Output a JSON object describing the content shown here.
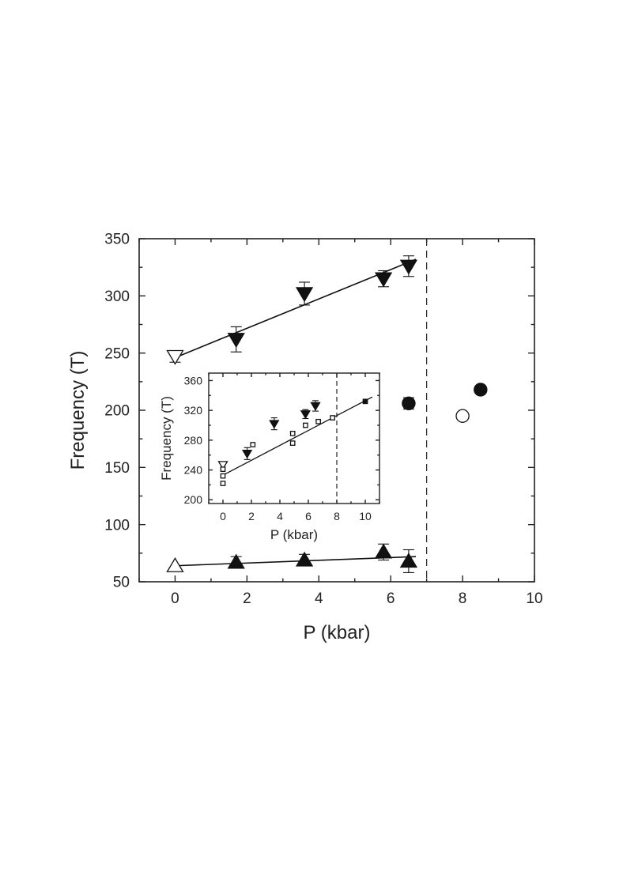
{
  "chart_data": [
    {
      "type": "scatter",
      "title": "",
      "xlabel": "P (kbar)",
      "ylabel": "Frequency (T)",
      "xlim": [
        -1,
        10
      ],
      "ylim": [
        50,
        350
      ],
      "xticks": [
        0,
        2,
        4,
        6,
        8,
        10
      ],
      "yticks": [
        50,
        100,
        150,
        200,
        250,
        300,
        350
      ],
      "grid": false,
      "vline": {
        "x": 7,
        "style": "dashed"
      },
      "series": [
        {
          "marker": "triangle-down-open",
          "points": [
            {
              "x": 0,
              "y": 247,
              "err": 5
            }
          ]
        },
        {
          "marker": "triangle-down-filled",
          "points": [
            {
              "x": 1.7,
              "y": 262,
              "err": 11
            },
            {
              "x": 3.6,
              "y": 302,
              "err": 10
            },
            {
              "x": 5.8,
              "y": 315,
              "err": 7
            },
            {
              "x": 6.5,
              "y": 326,
              "err": 9
            }
          ]
        },
        {
          "marker": "triangle-up-open",
          "points": [
            {
              "x": 0,
              "y": 64
            }
          ]
        },
        {
          "marker": "triangle-up-filled",
          "points": [
            {
              "x": 1.7,
              "y": 67,
              "err": 5
            },
            {
              "x": 3.6,
              "y": 69,
              "err": 5
            },
            {
              "x": 5.8,
              "y": 76,
              "err": 7
            },
            {
              "x": 6.5,
              "y": 68,
              "err": 10
            }
          ]
        },
        {
          "marker": "circle-filled",
          "points": [
            {
              "x": 6.5,
              "y": 206,
              "err": 5
            },
            {
              "x": 8.5,
              "y": 218
            }
          ]
        },
        {
          "marker": "circle-open",
          "points": [
            {
              "x": 8,
              "y": 195
            }
          ]
        }
      ],
      "fit_lines": [
        {
          "x": [
            0,
            6.7
          ],
          "y": [
            246,
            332
          ]
        },
        {
          "x": [
            0,
            6.7
          ],
          "y": [
            64,
            72
          ]
        }
      ]
    },
    {
      "type": "scatter",
      "title": "",
      "xlabel": "P (kbar)",
      "ylabel": "Frequency (T)",
      "xlim": [
        -1,
        11
      ],
      "ylim": [
        195,
        370
      ],
      "xticks": [
        0,
        2,
        4,
        6,
        8,
        10
      ],
      "yticks": [
        200,
        240,
        280,
        320,
        360
      ],
      "grid": false,
      "vline": {
        "x": 8,
        "style": "dashed"
      },
      "series": [
        {
          "marker": "triangle-down-open",
          "points": [
            {
              "x": 0,
              "y": 247
            }
          ]
        },
        {
          "marker": "triangle-down-filled",
          "points": [
            {
              "x": 1.7,
              "y": 262,
              "err": 8
            },
            {
              "x": 3.6,
              "y": 302,
              "err": 8
            },
            {
              "x": 5.8,
              "y": 315,
              "err": 6
            },
            {
              "x": 6.5,
              "y": 326,
              "err": 7
            }
          ]
        },
        {
          "marker": "square-open",
          "points": [
            {
              "x": 0,
              "y": 222
            },
            {
              "x": 0,
              "y": 232
            },
            {
              "x": 0,
              "y": 241
            },
            {
              "x": 2.1,
              "y": 274
            },
            {
              "x": 4.9,
              "y": 276
            },
            {
              "x": 4.9,
              "y": 289
            },
            {
              "x": 5.8,
              "y": 300
            },
            {
              "x": 6.7,
              "y": 305
            },
            {
              "x": 7.7,
              "y": 310
            }
          ]
        },
        {
          "marker": "square-filled",
          "points": [
            {
              "x": 10,
              "y": 332
            }
          ]
        }
      ],
      "fit_lines": [
        {
          "x": [
            0,
            10.5
          ],
          "y": [
            233,
            338
          ]
        }
      ]
    }
  ]
}
